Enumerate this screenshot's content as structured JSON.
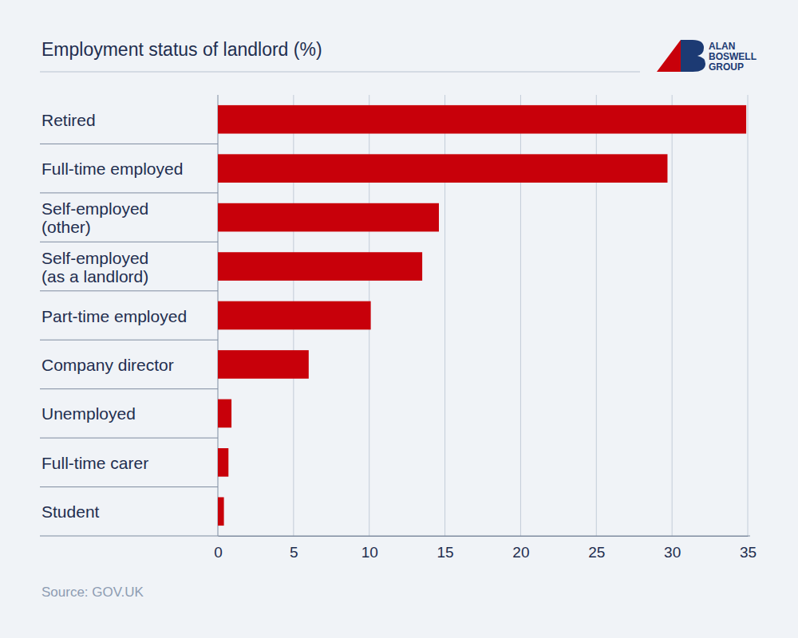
{
  "chart_data": {
    "type": "bar",
    "orientation": "horizontal",
    "title": "Employment status of landlord (%)",
    "source": "Source: GOV.UK",
    "logo": [
      "ALAN",
      "BOSWELL",
      "GROUP"
    ],
    "categories": [
      "Retired",
      "Full-time employed",
      "Self-employed\n(other)",
      "Self-employed\n(as a landlord)",
      "Part-time employed",
      "Company director",
      "Unemployed",
      "Full-time carer",
      "Student"
    ],
    "values": [
      34.9,
      29.7,
      14.6,
      13.5,
      10.1,
      6.0,
      0.9,
      0.7,
      0.4
    ],
    "color": "#c8000a",
    "xlim": [
      0,
      35
    ],
    "xticks": [
      0,
      5,
      10,
      15,
      20,
      25,
      30,
      35
    ],
    "grid": true
  }
}
